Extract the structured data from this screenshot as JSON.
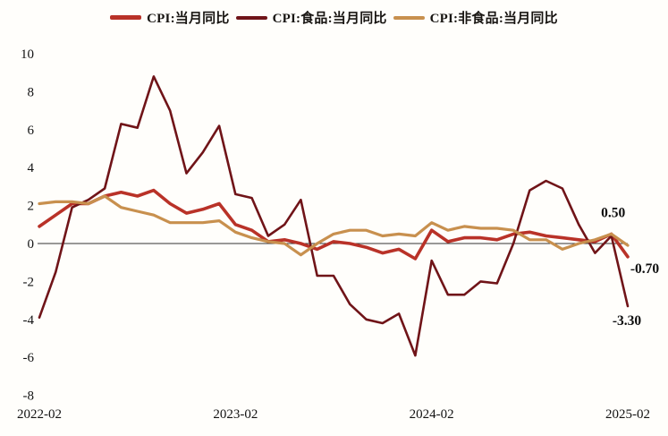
{
  "chart_data": {
    "type": "line",
    "title": "",
    "xlabel": "",
    "ylabel": "",
    "x": [
      "2022-02",
      "2022-03",
      "2022-04",
      "2022-05",
      "2022-06",
      "2022-07",
      "2022-08",
      "2022-09",
      "2022-10",
      "2022-11",
      "2022-12",
      "2023-01",
      "2023-02",
      "2023-03",
      "2023-04",
      "2023-05",
      "2023-06",
      "2023-07",
      "2023-08",
      "2023-09",
      "2023-10",
      "2023-11",
      "2023-12",
      "2024-01",
      "2024-02",
      "2024-03",
      "2024-04",
      "2024-05",
      "2024-06",
      "2024-07",
      "2024-08",
      "2024-09",
      "2024-10",
      "2024-11",
      "2024-12",
      "2025-01",
      "2025-02"
    ],
    "series": [
      {
        "name": "CPI:当月同比",
        "color": "#b93228",
        "values": [
          0.9,
          1.5,
          2.1,
          2.1,
          2.5,
          2.7,
          2.5,
          2.8,
          2.1,
          1.6,
          1.8,
          2.1,
          1.0,
          0.7,
          0.1,
          0.2,
          0.0,
          -0.3,
          0.1,
          0.0,
          -0.2,
          -0.5,
          -0.3,
          -0.8,
          0.7,
          0.1,
          0.3,
          0.3,
          0.2,
          0.5,
          0.6,
          0.4,
          0.3,
          0.2,
          0.1,
          0.5,
          -0.7
        ]
      },
      {
        "name": "CPI:食品:当月同比",
        "color": "#701418",
        "values": [
          -3.9,
          -1.5,
          1.9,
          2.3,
          2.9,
          6.3,
          6.1,
          8.8,
          7.0,
          3.7,
          4.8,
          6.2,
          2.6,
          2.4,
          0.4,
          1.0,
          2.3,
          -1.7,
          -1.7,
          -3.2,
          -4.0,
          -4.2,
          -3.7,
          -5.9,
          -0.9,
          -2.7,
          -2.7,
          -2.0,
          -2.1,
          0.0,
          2.8,
          3.3,
          2.9,
          1.0,
          -0.5,
          0.4,
          -3.3
        ]
      },
      {
        "name": "CPI:非食品:当月同比",
        "color": "#c8904e",
        "values": [
          2.1,
          2.2,
          2.2,
          2.1,
          2.5,
          1.9,
          1.7,
          1.5,
          1.1,
          1.1,
          1.1,
          1.2,
          0.6,
          0.3,
          0.1,
          0.0,
          -0.6,
          0.0,
          0.5,
          0.7,
          0.7,
          0.4,
          0.5,
          0.4,
          1.1,
          0.7,
          0.9,
          0.8,
          0.8,
          0.7,
          0.2,
          0.2,
          -0.3,
          0.0,
          0.2,
          0.5,
          -0.1
        ]
      }
    ],
    "ylim": [
      -8,
      10
    ],
    "y_ticks": [
      10,
      8,
      6,
      4,
      2,
      0,
      -2,
      -4,
      -6,
      -8
    ],
    "x_ticks": [
      {
        "label": "2022-02",
        "index": 0
      },
      {
        "label": "2023-02",
        "index": 12
      },
      {
        "label": "2024-02",
        "index": 24
      },
      {
        "label": "2025-02",
        "index": 36
      }
    ],
    "grid": false,
    "zero_line": true,
    "legend_position": "top",
    "annotations": [
      {
        "text": "0.50",
        "series": 0,
        "index": 35,
        "value": 0.5
      },
      {
        "text": "-0.70",
        "series": 0,
        "index": 36,
        "value": -0.7
      },
      {
        "text": "-3.30",
        "series": 1,
        "index": 36,
        "value": -3.3
      }
    ]
  }
}
